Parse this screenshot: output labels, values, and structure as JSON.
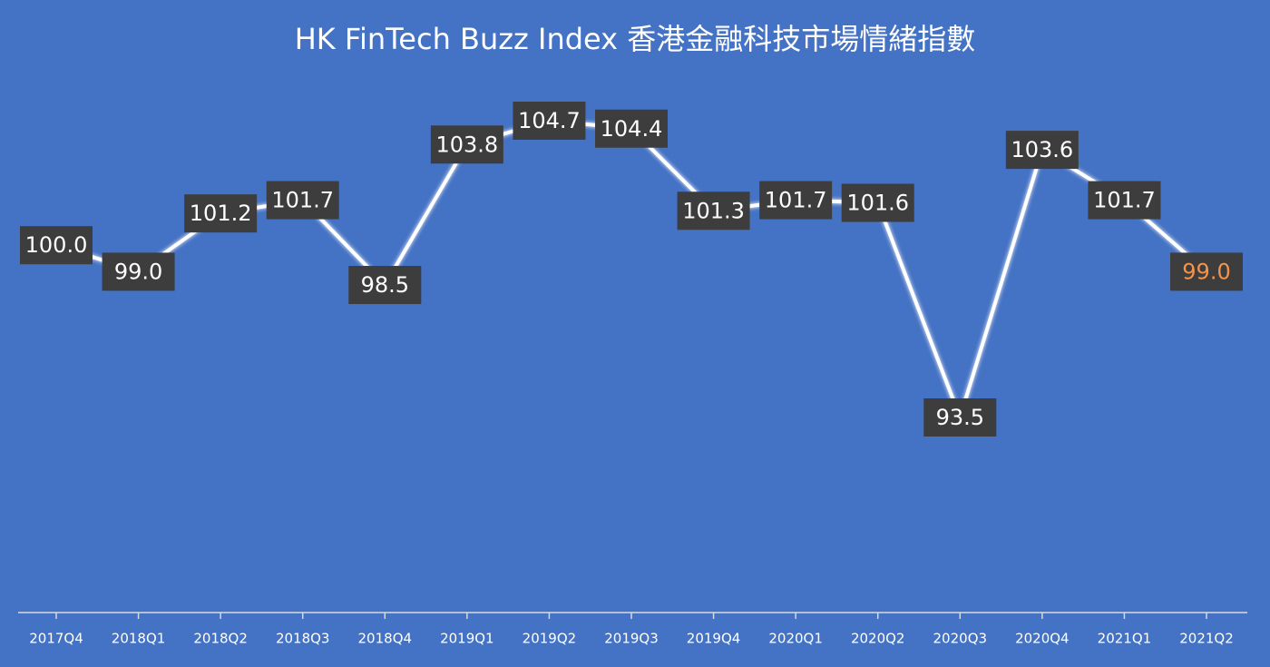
{
  "chart_data": {
    "type": "line",
    "title": "HK FinTech Buzz Index 香港金融科技市場情緒指數",
    "categories": [
      "2017Q4",
      "2018Q1",
      "2018Q2",
      "2018Q3",
      "2018Q4",
      "2019Q1",
      "2019Q2",
      "2019Q3",
      "2019Q4",
      "2020Q1",
      "2020Q2",
      "2020Q3",
      "2020Q4",
      "2021Q1",
      "2021Q2"
    ],
    "series": [
      {
        "color": "#ffffff",
        "values": [
          100.0,
          99.0,
          101.2,
          101.7,
          98.5,
          103.8,
          104.7,
          104.4,
          101.3,
          101.7,
          101.6,
          93.5,
          103.6,
          101.7,
          99.0
        ],
        "value_labels": [
          "100.0",
          "99.0",
          "101.2",
          "101.7",
          "98.5",
          "103.8",
          "104.7",
          "104.4",
          "101.3",
          "101.7",
          "101.6",
          "93.5",
          "103.6",
          "101.7",
          "99.0"
        ],
        "label_colors": [
          "#ffffff",
          "#ffffff",
          "#ffffff",
          "#ffffff",
          "#ffffff",
          "#ffffff",
          "#ffffff",
          "#ffffff",
          "#ffffff",
          "#ffffff",
          "#ffffff",
          "#ffffff",
          "#ffffff",
          "#ffffff",
          "#f4944a"
        ]
      }
    ],
    "background": "#4472c4",
    "label_box_color": "#3d3d3d"
  }
}
